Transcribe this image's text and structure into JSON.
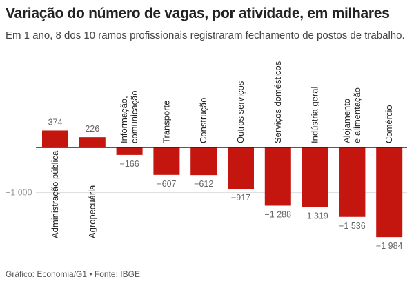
{
  "header": {
    "title": "Variação do número de vagas, por atividade, em milhares",
    "subtitle": "Em 1 ano, 8 dos 10 ramos profissionais registraram fechamento de postos de trabalho."
  },
  "footer": {
    "source": "Gráfico: Economia/G1 • Fonte: IBGE"
  },
  "chart_data": {
    "type": "bar",
    "title": "Variação do número de vagas, por atividade, em milhares",
    "categories": [
      [
        "Administração pública"
      ],
      [
        "Agropecuária"
      ],
      [
        "Informação,",
        "comunicação"
      ],
      [
        "Transporte"
      ],
      [
        "Construção"
      ],
      [
        "Outros serviços"
      ],
      [
        "Serviços domésticos"
      ],
      [
        "Indústria geral"
      ],
      [
        "Alojamento",
        "e alimentação"
      ],
      [
        "Comércio"
      ]
    ],
    "values": [
      374,
      226,
      -166,
      -607,
      -612,
      -917,
      -1288,
      -1319,
      -1536,
      -1984
    ],
    "value_labels": [
      "374",
      "226",
      "−166",
      "−607",
      "−612",
      "−917",
      "−1 288",
      "−1 319",
      "−1 536",
      "−1 984"
    ],
    "yticks": [
      {
        "value": -1000,
        "label": "−1 000"
      }
    ],
    "bar_color": "#c4160e",
    "zero_line_color": "#222222",
    "grid_color": "#dddddd",
    "xlabel": "",
    "ylabel": "",
    "ylim": [
      -2000,
      400
    ]
  }
}
